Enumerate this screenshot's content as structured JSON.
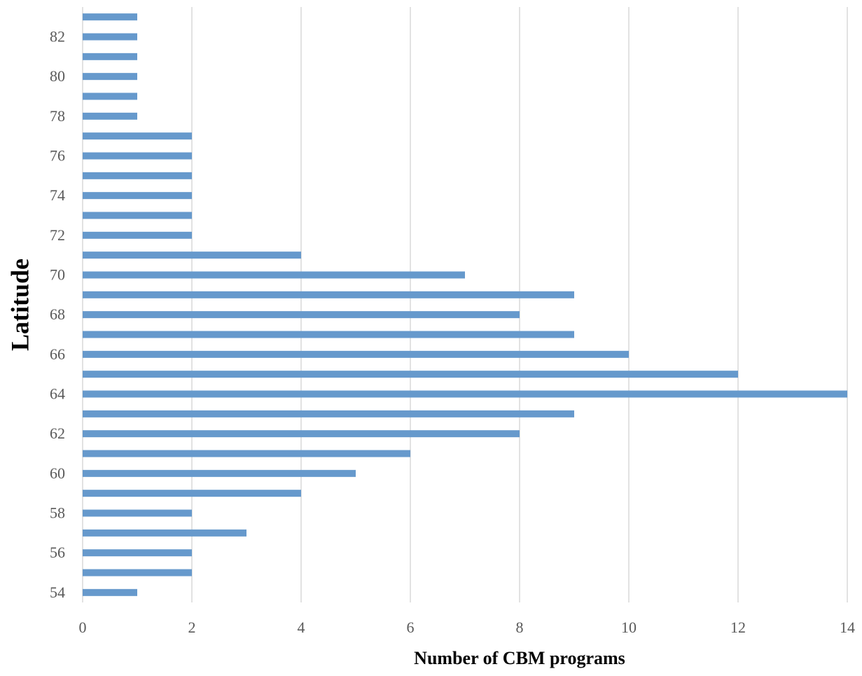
{
  "chart_data": {
    "type": "hbar",
    "x_label": "Number of  CBM programs",
    "y_label": "Latitude",
    "categories": [
      "54",
      null,
      "56",
      null,
      "58",
      null,
      "60",
      null,
      "62",
      null,
      "64",
      null,
      "66",
      null,
      "68",
      null,
      "70",
      null,
      "72",
      null,
      "74",
      null,
      "76",
      null,
      "78",
      null,
      "80",
      null,
      "82",
      null
    ],
    "values": [
      1,
      2,
      2,
      3,
      2,
      4,
      5,
      6,
      8,
      9,
      14,
      12,
      10,
      9,
      8,
      9,
      7,
      4,
      2,
      2,
      2,
      2,
      2,
      2,
      1,
      1,
      1,
      1,
      1,
      1
    ],
    "color": "#6699cc",
    "xlim": [
      0,
      14
    ],
    "xticks": [
      0,
      2,
      4,
      6,
      8,
      10,
      12,
      14
    ],
    "grid": true
  }
}
